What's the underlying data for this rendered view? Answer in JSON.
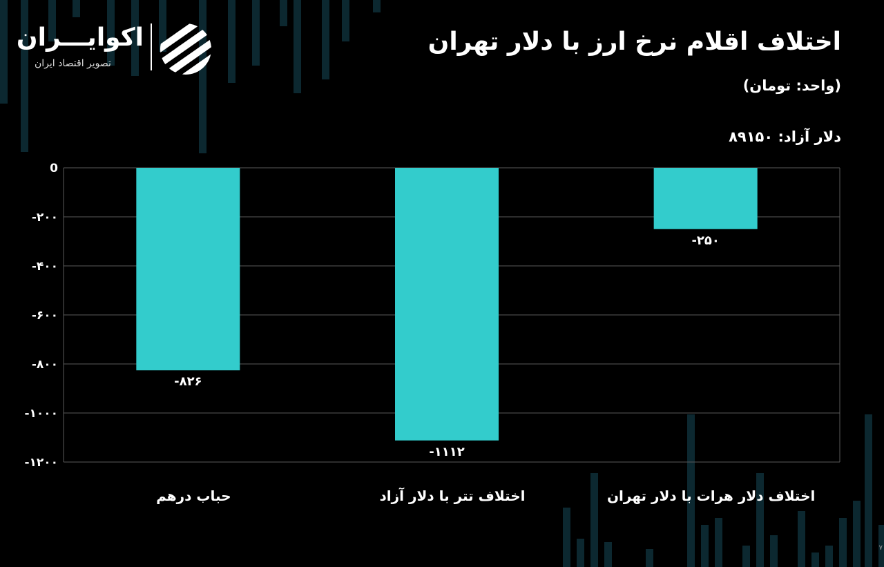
{
  "header": {
    "title": "اختلاف اقلام نرخ ارز با دلار تهران",
    "unit": "(واحد: تومان)",
    "free_dollar": "دلار آزاد: ۸۹۱۵۰"
  },
  "logo": {
    "name": "اکوایـــران",
    "tagline": "تصویر اقتصاد ایران"
  },
  "colors": {
    "background": "#000000",
    "bar": "#33cccc",
    "grid": "#5a5a5a",
    "text": "#ffffff"
  },
  "chart_data": {
    "type": "bar",
    "categories": [
      "حباب درهم",
      "اختلاف تتر با دلار آزاد",
      "اختلاف دلار هرات با دلار تهران"
    ],
    "values": [
      -826,
      -1112,
      -250
    ],
    "data_labels": [
      "-۸۲۶",
      "-۱۱۱۲",
      "-۲۵۰"
    ],
    "yticks": [
      0,
      -200,
      -400,
      -600,
      -800,
      -1000,
      -1200
    ],
    "ytick_labels": [
      "0",
      "-۲۰۰",
      "-۴۰۰",
      "-۶۰۰",
      "-۸۰۰",
      "-۱۰۰۰",
      "-۱۲۰۰"
    ],
    "ylim": [
      -1200,
      0
    ],
    "grid": true,
    "legend": "none"
  }
}
